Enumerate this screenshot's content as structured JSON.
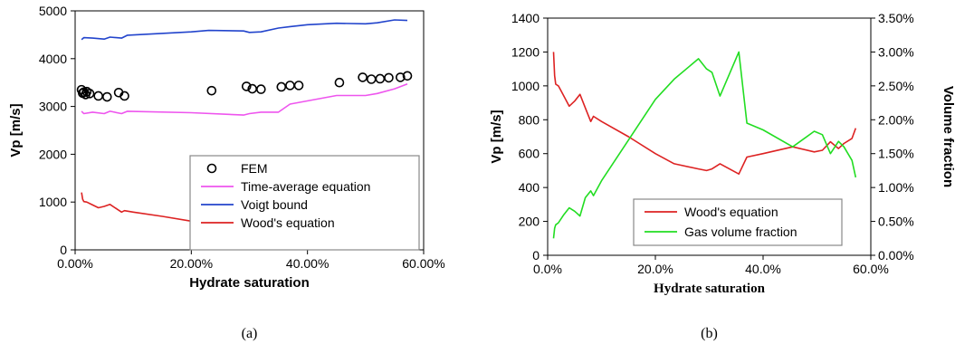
{
  "chart_data": [
    {
      "type": "line",
      "xlabel": "Hydrate saturation",
      "ylabel": "Vp [m/s]",
      "caption": "(a)",
      "xlim": [
        0,
        0.6
      ],
      "ylim": [
        0,
        5000
      ],
      "xticks": [
        0,
        0.2,
        0.4,
        0.6
      ],
      "xtick_labels": [
        "0.00%",
        "20.00%",
        "40.00%",
        "60.00%"
      ],
      "yticks": [
        0,
        1000,
        2000,
        3000,
        4000,
        5000
      ],
      "ytick_labels": [
        "0",
        "1000",
        "2000",
        "3000",
        "4000",
        "5000"
      ],
      "legend_position": "center-right",
      "series": [
        {
          "name": "FEM",
          "kind": "scatter",
          "marker": "open-circle",
          "color": "#000000",
          "x": [
            0.011,
            0.013,
            0.015,
            0.018,
            0.02,
            0.025,
            0.04,
            0.055,
            0.075,
            0.085,
            0.235,
            0.295,
            0.305,
            0.32,
            0.355,
            0.37,
            0.385,
            0.455,
            0.495,
            0.51,
            0.525,
            0.54,
            0.56,
            0.572
          ],
          "y": [
            3350,
            3280,
            3300,
            3250,
            3310,
            3270,
            3220,
            3200,
            3290,
            3220,
            3330,
            3420,
            3370,
            3360,
            3410,
            3440,
            3440,
            3500,
            3610,
            3570,
            3580,
            3600,
            3610,
            3640
          ]
        },
        {
          "name": "Time-average equation",
          "kind": "line",
          "color": "#ee55ee",
          "x": [
            0.011,
            0.015,
            0.03,
            0.05,
            0.06,
            0.08,
            0.09,
            0.2,
            0.29,
            0.3,
            0.32,
            0.35,
            0.37,
            0.45,
            0.5,
            0.52,
            0.55,
            0.572
          ],
          "y": [
            2900,
            2850,
            2880,
            2850,
            2900,
            2850,
            2900,
            2870,
            2820,
            2850,
            2880,
            2880,
            3050,
            3230,
            3230,
            3270,
            3370,
            3470
          ]
        },
        {
          "name": "Voigt bound",
          "kind": "line",
          "color": "#2244cc",
          "x": [
            0.011,
            0.015,
            0.03,
            0.05,
            0.06,
            0.08,
            0.09,
            0.2,
            0.23,
            0.29,
            0.3,
            0.32,
            0.35,
            0.37,
            0.4,
            0.45,
            0.5,
            0.52,
            0.55,
            0.572
          ],
          "y": [
            4400,
            4440,
            4430,
            4410,
            4450,
            4430,
            4490,
            4560,
            4590,
            4580,
            4550,
            4560,
            4640,
            4670,
            4710,
            4740,
            4730,
            4750,
            4810,
            4800
          ]
        },
        {
          "name": "Wood's equation",
          "kind": "line",
          "color": "#dd2222",
          "x": [
            0.011,
            0.013,
            0.015,
            0.02,
            0.03,
            0.04,
            0.05,
            0.06,
            0.07,
            0.08,
            0.085,
            0.1,
            0.15,
            0.2,
            0.235,
            0.28,
            0.295,
            0.305,
            0.32,
            0.355,
            0.37,
            0.4,
            0.455,
            0.495,
            0.51,
            0.525,
            0.54,
            0.55,
            0.565,
            0.572
          ],
          "y": [
            1200,
            1060,
            1010,
            1000,
            940,
            880,
            910,
            950,
            870,
            790,
            820,
            790,
            700,
            600,
            540,
            510,
            500,
            510,
            540,
            480,
            580,
            600,
            640,
            610,
            620,
            670,
            630,
            660,
            690,
            750
          ]
        }
      ]
    },
    {
      "type": "line",
      "xlabel": "Hydrate saturation",
      "ylabel": "Vp [m/s]",
      "y2label": "Volume fraction",
      "caption": "(b)",
      "xlim": [
        0,
        0.6
      ],
      "ylim": [
        0,
        1400
      ],
      "y2lim": [
        0,
        0.035
      ],
      "xticks": [
        0,
        0.2,
        0.4,
        0.6
      ],
      "xtick_labels": [
        "0.0%",
        "20.0%",
        "40.0%",
        "60.0%"
      ],
      "yticks": [
        0,
        200,
        400,
        600,
        800,
        1000,
        1200,
        1400
      ],
      "ytick_labels": [
        "0",
        "200",
        "400",
        "600",
        "800",
        "1000",
        "1200",
        "1400"
      ],
      "y2ticks": [
        0,
        0.005,
        0.01,
        0.015,
        0.02,
        0.025,
        0.03,
        0.035
      ],
      "y2tick_labels": [
        "0.00%",
        "0.50%",
        "1.00%",
        "1.50%",
        "2.00%",
        "2.50%",
        "3.00%",
        "3.50%"
      ],
      "legend_position": "bottom-center",
      "series": [
        {
          "name": "Wood's equation",
          "kind": "line",
          "axis": "left",
          "color": "#dd2222",
          "x": [
            0.011,
            0.013,
            0.015,
            0.02,
            0.03,
            0.04,
            0.05,
            0.06,
            0.07,
            0.08,
            0.085,
            0.1,
            0.15,
            0.2,
            0.235,
            0.28,
            0.295,
            0.305,
            0.32,
            0.355,
            0.37,
            0.4,
            0.455,
            0.495,
            0.51,
            0.525,
            0.54,
            0.55,
            0.565,
            0.572
          ],
          "y": [
            1200,
            1060,
            1010,
            1000,
            940,
            880,
            910,
            950,
            870,
            790,
            820,
            790,
            700,
            600,
            540,
            510,
            500,
            510,
            540,
            480,
            580,
            600,
            640,
            610,
            620,
            670,
            630,
            660,
            690,
            750
          ]
        },
        {
          "name": "Gas volume fraction",
          "kind": "line",
          "axis": "right",
          "color": "#22dd22",
          "x": [
            0.011,
            0.013,
            0.015,
            0.02,
            0.03,
            0.04,
            0.05,
            0.06,
            0.07,
            0.08,
            0.085,
            0.1,
            0.15,
            0.2,
            0.235,
            0.28,
            0.295,
            0.305,
            0.32,
            0.355,
            0.37,
            0.4,
            0.455,
            0.495,
            0.51,
            0.525,
            0.54,
            0.55,
            0.565,
            0.572
          ],
          "y": [
            0.0025,
            0.004,
            0.0045,
            0.0048,
            0.006,
            0.007,
            0.0065,
            0.0058,
            0.0085,
            0.0095,
            0.0088,
            0.011,
            0.017,
            0.023,
            0.026,
            0.029,
            0.0275,
            0.027,
            0.0235,
            0.03,
            0.0195,
            0.0185,
            0.016,
            0.0183,
            0.0178,
            0.015,
            0.0168,
            0.016,
            0.014,
            0.0115
          ]
        }
      ]
    }
  ]
}
